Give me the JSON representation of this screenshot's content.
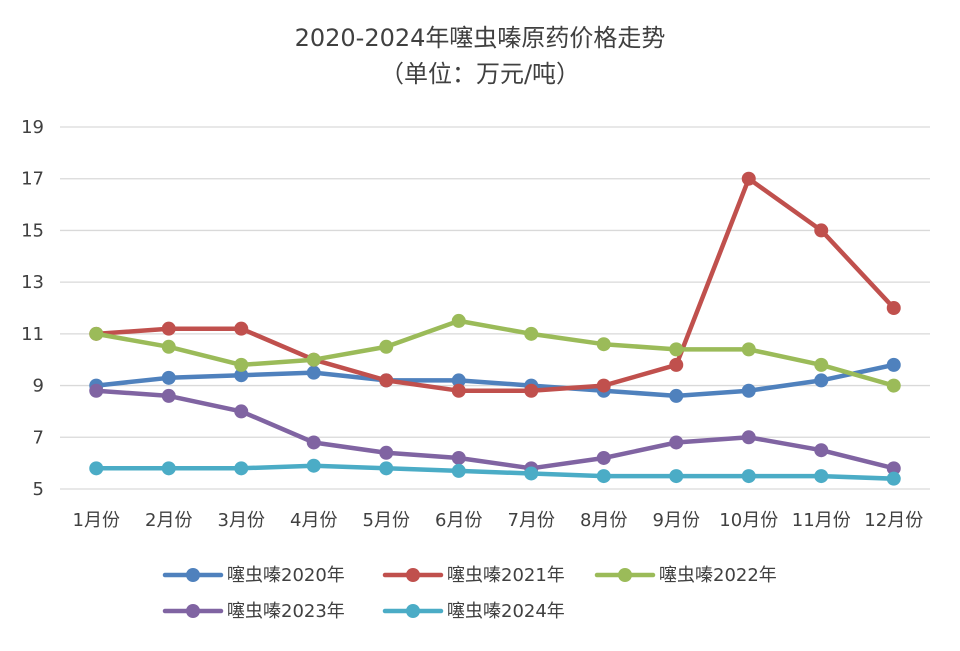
{
  "chart_data": {
    "type": "line",
    "title": "2020-2024年噻虫嗪原药价格走势",
    "subtitle": "（单位：万元/吨）",
    "xlabel": "",
    "ylabel": "",
    "categories": [
      "1月份",
      "2月份",
      "3月份",
      "4月份",
      "5月份",
      "6月份",
      "7月份",
      "8月份",
      "9月份",
      "10月份",
      "11月份",
      "12月份"
    ],
    "ylim": [
      5,
      19
    ],
    "yticks": [
      5,
      7,
      9,
      11,
      13,
      15,
      17,
      19
    ],
    "grid": true,
    "legend_position": "bottom",
    "series": [
      {
        "name": "噻虫嗪2020年",
        "color": "#4F81BD",
        "values": [
          9.0,
          9.3,
          9.4,
          9.5,
          9.2,
          9.2,
          9.0,
          8.8,
          8.6,
          8.8,
          9.2,
          9.8
        ]
      },
      {
        "name": "噻虫嗪2021年",
        "color": "#C0504D",
        "values": [
          11.0,
          11.2,
          11.2,
          10.0,
          9.2,
          8.8,
          8.8,
          9.0,
          9.8,
          17.0,
          15.0,
          12.0
        ]
      },
      {
        "name": "噻虫嗪2022年",
        "color": "#9BBB59",
        "values": [
          11.0,
          10.5,
          9.8,
          10.0,
          10.5,
          11.5,
          11.0,
          10.6,
          10.4,
          10.4,
          9.8,
          9.0
        ]
      },
      {
        "name": "噻虫嗪2023年",
        "color": "#8064A2",
        "values": [
          8.8,
          8.6,
          8.0,
          6.8,
          6.4,
          6.2,
          5.8,
          6.2,
          6.8,
          7.0,
          6.5,
          5.8
        ]
      },
      {
        "name": "噻虫嗪2024年",
        "color": "#4BACC6",
        "values": [
          5.8,
          5.8,
          5.8,
          5.9,
          5.8,
          5.7,
          5.6,
          5.5,
          5.5,
          5.5,
          5.5,
          5.4
        ]
      }
    ]
  }
}
